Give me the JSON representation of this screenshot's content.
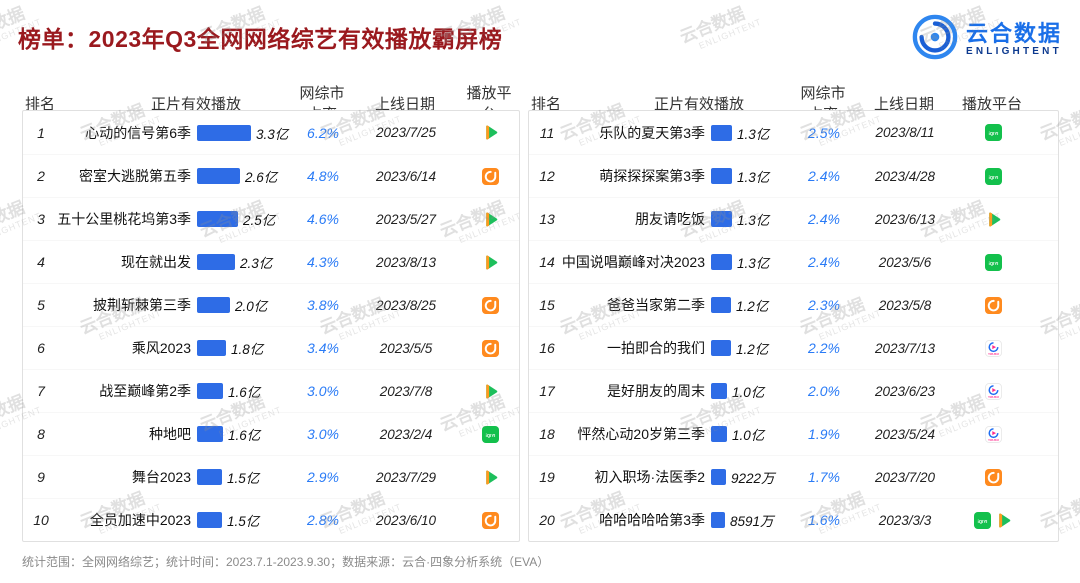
{
  "header": {
    "title": "榜单：2023年Q3全网网络综艺有效播放霸屏榜",
    "logo_cn": "云合数据",
    "logo_en": "ENLIGHTENT"
  },
  "watermark": {
    "line1": "云合数据",
    "line2": "ENLIGHTENT"
  },
  "columns": {
    "rank": "排名",
    "plays": "正片有效播放",
    "share": "网综市占率",
    "date": "上线日期",
    "platform": "播放平台"
  },
  "footer": "统计范围：全网网络综艺；统计时间：2023.7.1-2023.9.30；数据来源：云合·四象分析系统（EVA）",
  "colors": {
    "title_red": "#9a191e",
    "bar_blue": "#2e6ce6",
    "share_blue": "#2a7bf6",
    "tencent_green": "#1dbf5c",
    "mango_orange": "#ff8a1e",
    "iqiyi_green": "#13c04c",
    "youku_pink": "#ff2b8d"
  },
  "chart_data": {
    "type": "bar",
    "title": "2023年Q3全网网络综艺有效播放霸屏榜",
    "value_unit": "亿",
    "max_value_yi": 3.3,
    "legend_position": "none",
    "rows": [
      {
        "rank": 1,
        "name": "心动的信号第6季",
        "value_yi": 3.3,
        "value_label": "3.3亿",
        "share": "6.2%",
        "date": "2023/7/25",
        "platforms": [
          "tencent-video"
        ]
      },
      {
        "rank": 2,
        "name": "密室大逃脱第五季",
        "value_yi": 2.6,
        "value_label": "2.6亿",
        "share": "4.8%",
        "date": "2023/6/14",
        "platforms": [
          "mango-tv"
        ]
      },
      {
        "rank": 3,
        "name": "五十公里桃花坞第3季",
        "value_yi": 2.5,
        "value_label": "2.5亿",
        "share": "4.6%",
        "date": "2023/5/27",
        "platforms": [
          "tencent-video"
        ]
      },
      {
        "rank": 4,
        "name": "现在就出发",
        "value_yi": 2.3,
        "value_label": "2.3亿",
        "share": "4.3%",
        "date": "2023/8/13",
        "platforms": [
          "tencent-video"
        ]
      },
      {
        "rank": 5,
        "name": "披荆斩棘第三季",
        "value_yi": 2.0,
        "value_label": "2.0亿",
        "share": "3.8%",
        "date": "2023/8/25",
        "platforms": [
          "mango-tv"
        ]
      },
      {
        "rank": 6,
        "name": "乘风2023",
        "value_yi": 1.8,
        "value_label": "1.8亿",
        "share": "3.4%",
        "date": "2023/5/5",
        "platforms": [
          "mango-tv"
        ]
      },
      {
        "rank": 7,
        "name": "战至巅峰第2季",
        "value_yi": 1.6,
        "value_label": "1.6亿",
        "share": "3.0%",
        "date": "2023/7/8",
        "platforms": [
          "tencent-video"
        ]
      },
      {
        "rank": 8,
        "name": "种地吧",
        "value_yi": 1.6,
        "value_label": "1.6亿",
        "share": "3.0%",
        "date": "2023/2/4",
        "platforms": [
          "iqiyi"
        ]
      },
      {
        "rank": 9,
        "name": "舞台2023",
        "value_yi": 1.5,
        "value_label": "1.5亿",
        "share": "2.9%",
        "date": "2023/7/29",
        "platforms": [
          "tencent-video"
        ]
      },
      {
        "rank": 10,
        "name": "全员加速中2023",
        "value_yi": 1.5,
        "value_label": "1.5亿",
        "share": "2.8%",
        "date": "2023/6/10",
        "platforms": [
          "mango-tv"
        ]
      },
      {
        "rank": 11,
        "name": "乐队的夏天第3季",
        "value_yi": 1.3,
        "value_label": "1.3亿",
        "share": "2.5%",
        "date": "2023/8/11",
        "platforms": [
          "iqiyi"
        ]
      },
      {
        "rank": 12,
        "name": "萌探探探案第3季",
        "value_yi": 1.3,
        "value_label": "1.3亿",
        "share": "2.4%",
        "date": "2023/4/28",
        "platforms": [
          "iqiyi"
        ]
      },
      {
        "rank": 13,
        "name": "朋友请吃饭",
        "value_yi": 1.3,
        "value_label": "1.3亿",
        "share": "2.4%",
        "date": "2023/6/13",
        "platforms": [
          "tencent-video"
        ]
      },
      {
        "rank": 14,
        "name": "中国说唱巅峰对决2023",
        "value_yi": 1.3,
        "value_label": "1.3亿",
        "share": "2.4%",
        "date": "2023/5/6",
        "platforms": [
          "iqiyi"
        ]
      },
      {
        "rank": 15,
        "name": "爸爸当家第二季",
        "value_yi": 1.2,
        "value_label": "1.2亿",
        "share": "2.3%",
        "date": "2023/5/8",
        "platforms": [
          "mango-tv"
        ]
      },
      {
        "rank": 16,
        "name": "一拍即合的我们",
        "value_yi": 1.2,
        "value_label": "1.2亿",
        "share": "2.2%",
        "date": "2023/7/13",
        "platforms": [
          "youku"
        ]
      },
      {
        "rank": 17,
        "name": "是好朋友的周末",
        "value_yi": 1.0,
        "value_label": "1.0亿",
        "share": "2.0%",
        "date": "2023/6/23",
        "platforms": [
          "youku"
        ]
      },
      {
        "rank": 18,
        "name": "怦然心动20岁第三季",
        "value_yi": 1.0,
        "value_label": "1.0亿",
        "share": "1.9%",
        "date": "2023/5/24",
        "platforms": [
          "youku"
        ]
      },
      {
        "rank": 19,
        "name": "初入职场·法医季2",
        "value_yi": 0.9222,
        "value_label": "9222万",
        "share": "1.7%",
        "date": "2023/7/20",
        "platforms": [
          "mango-tv"
        ]
      },
      {
        "rank": 20,
        "name": "哈哈哈哈哈第3季",
        "value_yi": 0.8591,
        "value_label": "8591万",
        "share": "1.6%",
        "date": "2023/3/3",
        "platforms": [
          "iqiyi",
          "tencent-video"
        ]
      }
    ]
  }
}
